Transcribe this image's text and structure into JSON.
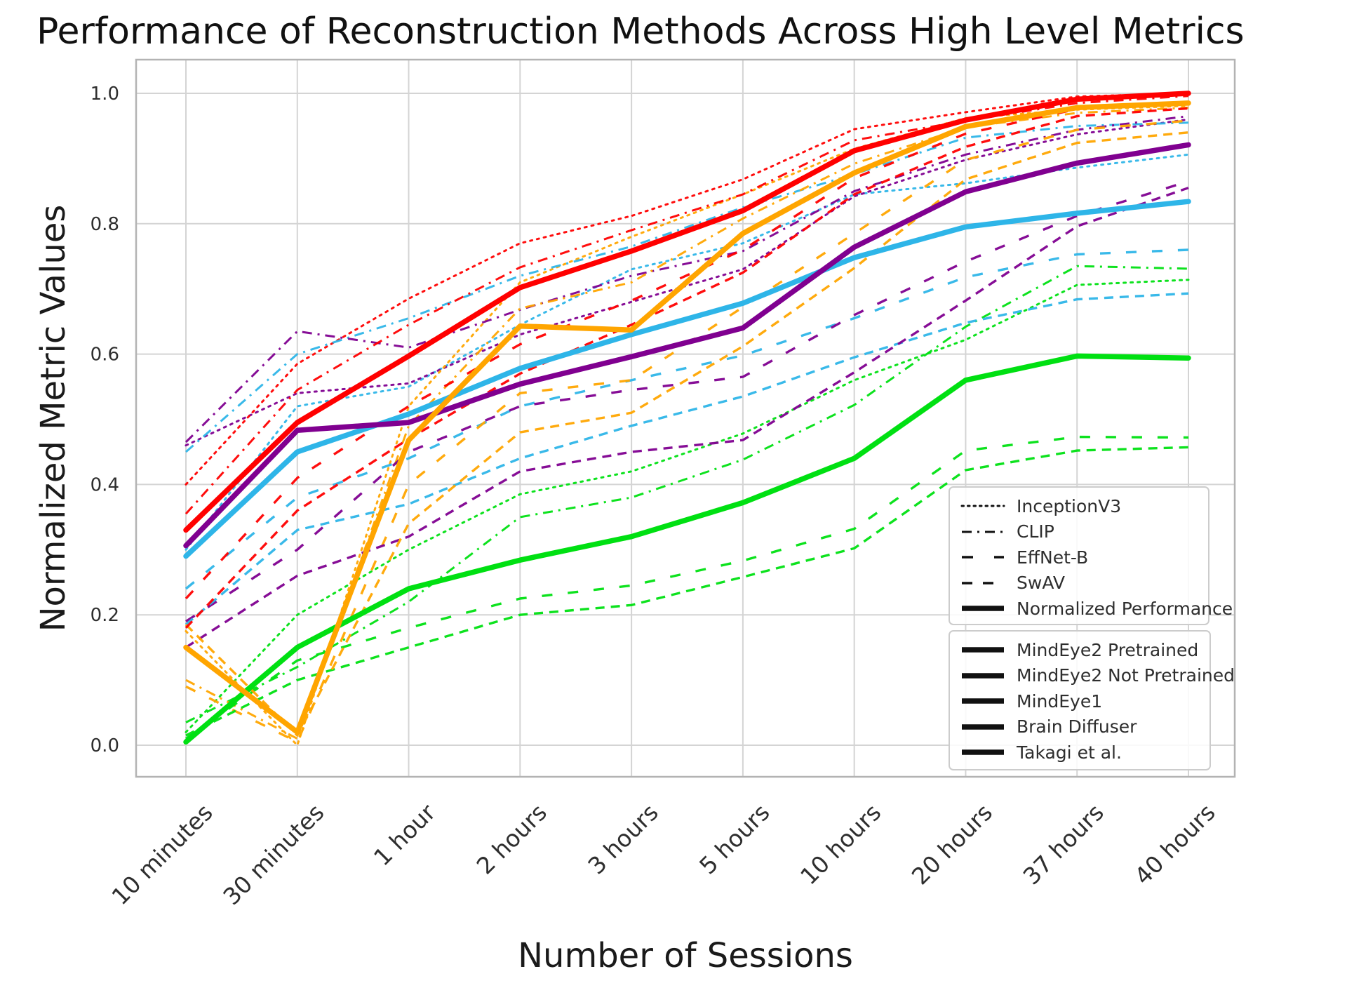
{
  "page": {
    "background": "#ffffff"
  },
  "chart_data": {
    "type": "line",
    "title": "Performance of Reconstruction Methods Across High Level Metrics",
    "xlabel": "Number of Sessions",
    "ylabel": "Normalized Metric Values",
    "grid": true,
    "legend_position": "lower right",
    "categories": [
      "10 minutes",
      "30 minutes",
      "1 hour",
      "2 hours",
      "3 hours",
      "5 hours",
      "10 hours",
      "20 hours",
      "37 hours",
      "40 hours"
    ],
    "yticks": [
      0.0,
      0.2,
      0.4,
      0.6,
      0.8,
      1.0
    ],
    "ylim": [
      -0.05,
      1.05
    ],
    "legend_line_styles": [
      {
        "key": "inceptionv3",
        "label": "InceptionV3",
        "dash": "dotted"
      },
      {
        "key": "clip",
        "label": "CLIP",
        "dash": "dashdot"
      },
      {
        "key": "effnet",
        "label": "EffNet-B",
        "dash": "longdash"
      },
      {
        "key": "swav",
        "label": "SwAV",
        "dash": "dash"
      },
      {
        "key": "normalized",
        "label": "Normalized Performance",
        "dash": "solid"
      }
    ],
    "methods": [
      {
        "name": "MindEye2 Pretrained",
        "color": "#ff0000",
        "metrics": {
          "inceptionv3": [
            0.4,
            0.585,
            0.685,
            0.77,
            0.812,
            0.868,
            0.945,
            0.971,
            0.995,
            1.0
          ],
          "clip": [
            0.355,
            0.545,
            0.645,
            0.733,
            0.79,
            0.845,
            0.928,
            0.958,
            0.985,
            0.996
          ],
          "effnet": [
            0.225,
            0.41,
            0.52,
            0.615,
            0.682,
            0.76,
            0.87,
            0.938,
            0.976,
            0.986
          ],
          "swav": [
            0.18,
            0.36,
            0.47,
            0.57,
            0.645,
            0.725,
            0.845,
            0.918,
            0.965,
            0.977
          ],
          "normalized": [
            0.33,
            0.495,
            0.597,
            0.702,
            0.758,
            0.82,
            0.912,
            0.959,
            0.991,
            1.0
          ]
        }
      },
      {
        "name": "MindEye2 Not Pretrained",
        "color": "#ffa500",
        "metrics": {
          "inceptionv3": [
            0.175,
            0.0,
            0.52,
            0.71,
            0.78,
            0.845,
            0.915,
            0.962,
            0.975,
            0.981
          ],
          "clip": [
            0.1,
            0.01,
            0.49,
            0.67,
            0.71,
            0.808,
            0.892,
            0.948,
            0.97,
            0.978
          ],
          "effnet": [
            0.09,
            0.005,
            0.4,
            0.54,
            0.56,
            0.672,
            0.785,
            0.898,
            0.944,
            0.958
          ],
          "swav": [
            0.185,
            0.015,
            0.34,
            0.48,
            0.51,
            0.612,
            0.732,
            0.868,
            0.924,
            0.94
          ],
          "normalized": [
            0.15,
            0.02,
            0.468,
            0.643,
            0.637,
            0.785,
            0.878,
            0.949,
            0.978,
            0.985
          ]
        }
      },
      {
        "name": "MindEye1",
        "color": "#800090",
        "metrics": {
          "inceptionv3": [
            0.46,
            0.54,
            0.555,
            0.63,
            0.68,
            0.73,
            0.842,
            0.898,
            0.937,
            0.96
          ],
          "clip": [
            0.465,
            0.635,
            0.61,
            0.668,
            0.72,
            0.758,
            0.85,
            0.906,
            0.944,
            0.965
          ],
          "effnet": [
            0.19,
            0.3,
            0.45,
            0.52,
            0.545,
            0.565,
            0.66,
            0.742,
            0.812,
            0.865
          ],
          "swav": [
            0.15,
            0.26,
            0.32,
            0.42,
            0.45,
            0.468,
            0.572,
            0.682,
            0.796,
            0.855
          ],
          "normalized": [
            0.306,
            0.483,
            0.495,
            0.554,
            0.596,
            0.64,
            0.764,
            0.849,
            0.893,
            0.921
          ]
        }
      },
      {
        "name": "Brain Diffuser",
        "color": "#2eb5e8",
        "metrics": {
          "inceptionv3": [
            0.3,
            0.52,
            0.55,
            0.645,
            0.73,
            0.77,
            0.845,
            0.862,
            0.886,
            0.906
          ],
          "clip": [
            0.45,
            0.6,
            0.655,
            0.72,
            0.765,
            0.825,
            0.876,
            0.932,
            0.95,
            0.955
          ],
          "effnet": [
            0.24,
            0.38,
            0.44,
            0.52,
            0.56,
            0.598,
            0.655,
            0.718,
            0.753,
            0.76
          ],
          "swav": [
            0.185,
            0.33,
            0.37,
            0.44,
            0.49,
            0.535,
            0.595,
            0.648,
            0.684,
            0.693
          ],
          "normalized": [
            0.29,
            0.45,
            0.508,
            0.578,
            0.63,
            0.678,
            0.748,
            0.795,
            0.816,
            0.834
          ]
        }
      },
      {
        "name": "Takagi et al.",
        "color": "#00e012",
        "metrics": {
          "inceptionv3": [
            0.02,
            0.2,
            0.3,
            0.385,
            0.42,
            0.478,
            0.56,
            0.622,
            0.706,
            0.714
          ],
          "clip": [
            0.035,
            0.12,
            0.22,
            0.35,
            0.38,
            0.438,
            0.522,
            0.642,
            0.735,
            0.731
          ],
          "effnet": [
            0.01,
            0.13,
            0.18,
            0.225,
            0.245,
            0.283,
            0.332,
            0.452,
            0.473,
            0.472
          ],
          "swav": [
            0.015,
            0.1,
            0.15,
            0.2,
            0.215,
            0.258,
            0.302,
            0.422,
            0.452,
            0.457
          ],
          "normalized": [
            0.005,
            0.15,
            0.24,
            0.284,
            0.32,
            0.372,
            0.44,
            0.56,
            0.597,
            0.594
          ]
        }
      }
    ]
  }
}
